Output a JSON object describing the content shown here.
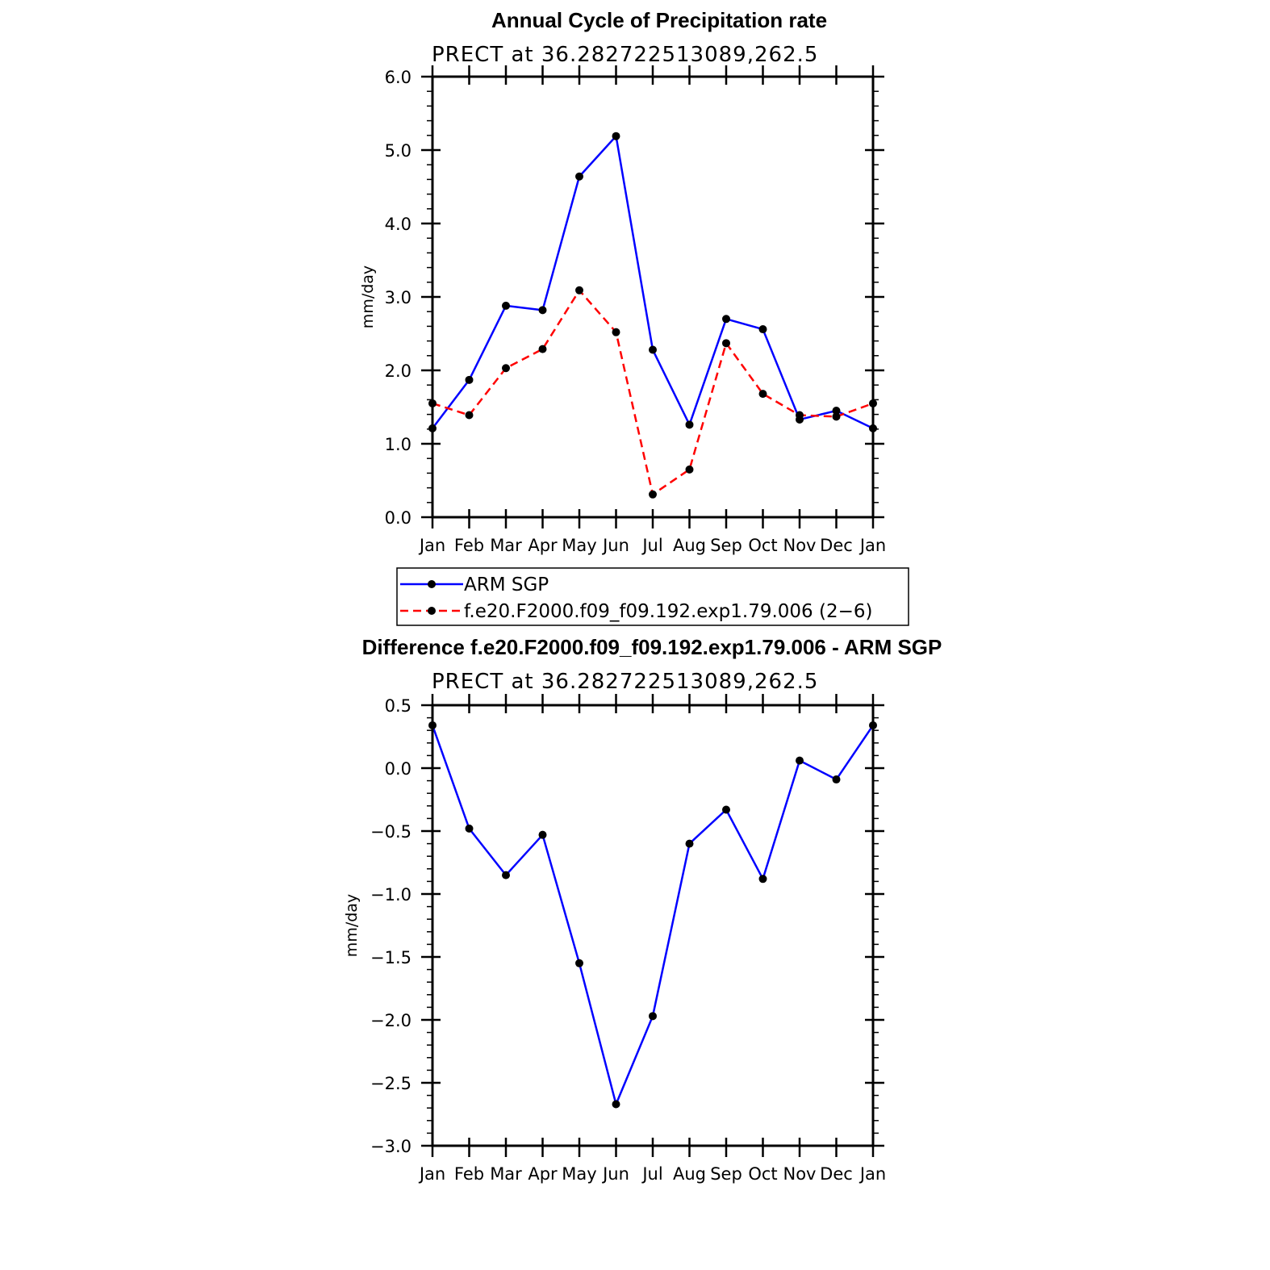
{
  "chart_data": [
    {
      "type": "line",
      "title": "Annual Cycle of Precipitation rate",
      "subtitle": "PRECT at 36.282722513089,262.5",
      "xlabel": "",
      "ylabel": "mm/day",
      "categories": [
        "Jan",
        "Feb",
        "Mar",
        "Apr",
        "May",
        "Jun",
        "Jul",
        "Aug",
        "Sep",
        "Oct",
        "Nov",
        "Dec",
        "Jan"
      ],
      "ylim": [
        0.0,
        6.0
      ],
      "yticks": [
        "0.0",
        "1.0",
        "2.0",
        "3.0",
        "4.0",
        "5.0",
        "6.0"
      ],
      "ytick_values": [
        0,
        1,
        2,
        3,
        4,
        5,
        6
      ],
      "series": [
        {
          "name": "ARM SGP",
          "color": "#0000ff",
          "dash": "solid",
          "values": [
            1.21,
            1.87,
            2.88,
            2.82,
            4.64,
            5.19,
            2.28,
            1.26,
            2.7,
            2.56,
            1.33,
            1.45,
            1.21
          ]
        },
        {
          "name": "f.e20.F2000.f09_f09.192.exp1.79.006 (2−6)",
          "color": "#ff0000",
          "dash": "dashed",
          "values": [
            1.55,
            1.39,
            2.03,
            2.29,
            3.09,
            2.52,
            0.31,
            0.65,
            2.37,
            1.68,
            1.39,
            1.37,
            1.55
          ]
        }
      ],
      "legend": {
        "position": "bottom",
        "entries": [
          "ARM SGP",
          "f.e20.F2000.f09_f09.192.exp1.79.006 (2−6)"
        ]
      }
    },
    {
      "type": "line",
      "title": "Difference f.e20.F2000.f09_f09.192.exp1.79.006 - ARM SGP",
      "subtitle": "PRECT at 36.282722513089,262.5",
      "xlabel": "",
      "ylabel": "mm/day",
      "categories": [
        "Jan",
        "Feb",
        "Mar",
        "Apr",
        "May",
        "Jun",
        "Jul",
        "Aug",
        "Sep",
        "Oct",
        "Nov",
        "Dec",
        "Jan"
      ],
      "ylim": [
        -3.0,
        0.5
      ],
      "yticks": [
        "−3.0",
        "−2.5",
        "−2.0",
        "−1.5",
        "−1.0",
        "−0.5",
        "0.0",
        "0.5"
      ],
      "ytick_values": [
        -3.0,
        -2.5,
        -2.0,
        -1.5,
        -1.0,
        -0.5,
        0.0,
        0.5
      ],
      "series": [
        {
          "name": "Difference",
          "color": "#0000ff",
          "dash": "solid",
          "values": [
            0.34,
            -0.48,
            -0.85,
            -0.53,
            -1.55,
            -2.67,
            -1.97,
            -0.6,
            -0.33,
            -0.88,
            0.06,
            -0.09,
            0.34
          ]
        }
      ]
    }
  ]
}
